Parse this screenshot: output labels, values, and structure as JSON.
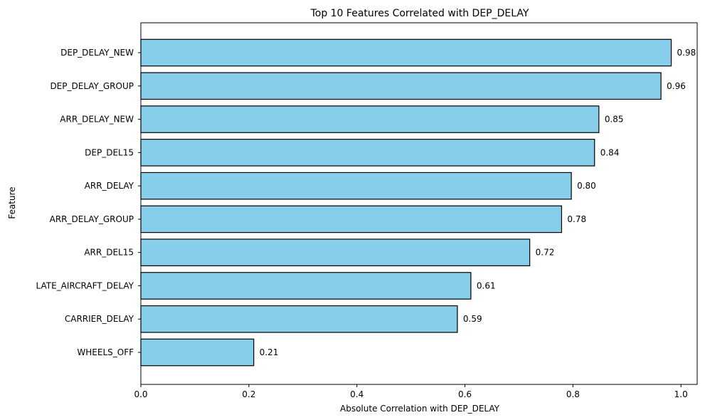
{
  "chart_data": {
    "type": "bar",
    "orientation": "horizontal",
    "title": "Top 10 Features Correlated with DEP_DELAY",
    "xlabel": "Absolute Correlation with DEP_DELAY",
    "ylabel": "Feature",
    "xlim": [
      0,
      1.03
    ],
    "xticks": [
      "0.0",
      "0.2",
      "0.4",
      "0.6",
      "0.8",
      "1.0"
    ],
    "xtick_values": [
      0,
      0.2,
      0.4,
      0.6,
      0.8,
      1.0
    ],
    "categories": [
      "DEP_DELAY_NEW",
      "DEP_DELAY_GROUP",
      "ARR_DELAY_NEW",
      "DEP_DEL15",
      "ARR_DELAY",
      "ARR_DELAY_GROUP",
      "ARR_DEL15",
      "LATE_AIRCRAFT_DELAY",
      "CARRIER_DELAY",
      "WHEELS_OFF"
    ],
    "values": [
      0.982,
      0.963,
      0.848,
      0.84,
      0.797,
      0.779,
      0.72,
      0.611,
      0.586,
      0.209
    ],
    "data_labels": [
      "0.98",
      "0.96",
      "0.85",
      "0.84",
      "0.80",
      "0.78",
      "0.72",
      "0.61",
      "0.59",
      "0.21"
    ],
    "bar_color": "#87CEEB",
    "edge_color": "#000000",
    "grid": false,
    "legend": false
  }
}
